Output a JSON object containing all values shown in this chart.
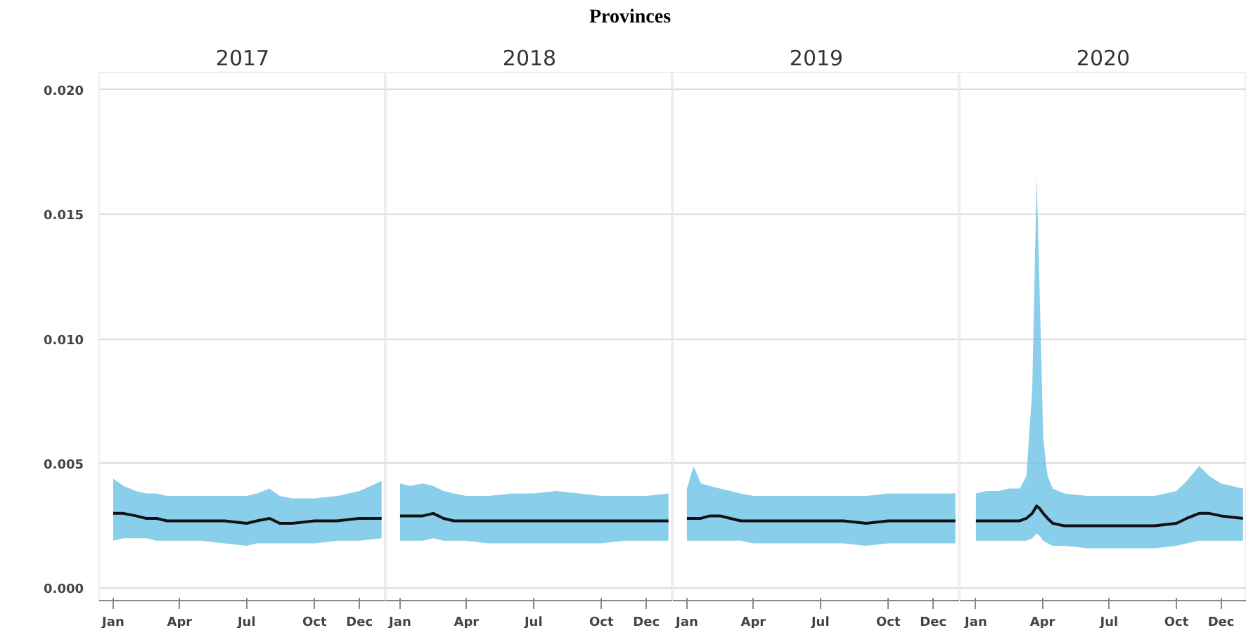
{
  "chart_data": [
    {
      "type": "line",
      "title": "2017",
      "annotations": [
        "Provinces"
      ],
      "x": [
        "2017-01-01",
        "2017-01-15",
        "2017-02-01",
        "2017-02-15",
        "2017-03-01",
        "2017-03-15",
        "2017-04-01",
        "2017-05-01",
        "2017-06-01",
        "2017-07-01",
        "2017-07-15",
        "2017-08-01",
        "2017-08-15",
        "2017-09-01",
        "2017-10-01",
        "2017-11-01",
        "2017-12-01",
        "2017-12-31"
      ],
      "series": [
        {
          "color": "#111111",
          "values": [
            0.003,
            0.003,
            0.0029,
            0.0028,
            0.0028,
            0.0027,
            0.0027,
            0.0027,
            0.0027,
            0.0026,
            0.0027,
            0.0028,
            0.0026,
            0.0026,
            0.0027,
            0.0027,
            0.0028,
            0.0028
          ],
          "lower": [
            0.0019,
            0.002,
            0.002,
            0.002,
            0.0019,
            0.0019,
            0.0019,
            0.0019,
            0.0018,
            0.0017,
            0.0018,
            0.0018,
            0.0018,
            0.0018,
            0.0018,
            0.0019,
            0.0019,
            0.002
          ],
          "upper": [
            0.0044,
            0.0041,
            0.0039,
            0.0038,
            0.0038,
            0.0037,
            0.0037,
            0.0037,
            0.0037,
            0.0037,
            0.0038,
            0.004,
            0.0037,
            0.0036,
            0.0036,
            0.0037,
            0.0039,
            0.0043
          ]
        }
      ],
      "xlim": [
        "2016-12-13",
        "2018-01-06"
      ],
      "xticks": [
        {
          "value": "2017-01-01",
          "label": "Jan"
        },
        {
          "value": "2017-04-01",
          "label": "Apr"
        },
        {
          "value": "2017-07-01",
          "label": "Jul"
        },
        {
          "value": "2017-10-01",
          "label": "Oct"
        },
        {
          "value": "2017-12-01",
          "label": "Dec"
        }
      ],
      "ylim": [
        -0.0005,
        0.0207
      ],
      "yticks": [
        {
          "value": 0,
          "label": "0.000"
        },
        {
          "value": 0.005,
          "label": "0.005"
        },
        {
          "value": 0.01,
          "label": "0.010"
        },
        {
          "value": 0.015,
          "label": "0.015"
        },
        {
          "value": 0.02,
          "label": "0.020"
        }
      ],
      "grid": "y"
    },
    {
      "type": "line",
      "title": "2018",
      "x": [
        "2018-01-01",
        "2018-01-15",
        "2018-02-01",
        "2018-02-15",
        "2018-03-01",
        "2018-03-15",
        "2018-04-01",
        "2018-05-01",
        "2018-06-01",
        "2018-07-01",
        "2018-08-01",
        "2018-09-01",
        "2018-10-01",
        "2018-11-01",
        "2018-12-01",
        "2018-12-31"
      ],
      "series": [
        {
          "color": "#111111",
          "values": [
            0.0029,
            0.0029,
            0.0029,
            0.003,
            0.0028,
            0.0027,
            0.0027,
            0.0027,
            0.0027,
            0.0027,
            0.0027,
            0.0027,
            0.0027,
            0.0027,
            0.0027,
            0.0027
          ],
          "lower": [
            0.0019,
            0.0019,
            0.0019,
            0.002,
            0.0019,
            0.0019,
            0.0019,
            0.0018,
            0.0018,
            0.0018,
            0.0018,
            0.0018,
            0.0018,
            0.0019,
            0.0019,
            0.0019
          ],
          "upper": [
            0.0042,
            0.0041,
            0.0042,
            0.0041,
            0.0039,
            0.0038,
            0.0037,
            0.0037,
            0.0038,
            0.0038,
            0.0039,
            0.0038,
            0.0037,
            0.0037,
            0.0037,
            0.0038
          ]
        }
      ],
      "xlim": [
        "2017-12-13",
        "2019-01-06"
      ],
      "xticks": [
        {
          "value": "2018-01-01",
          "label": "Jan"
        },
        {
          "value": "2018-04-01",
          "label": "Apr"
        },
        {
          "value": "2018-07-01",
          "label": "Jul"
        },
        {
          "value": "2018-10-01",
          "label": "Oct"
        },
        {
          "value": "2018-12-01",
          "label": "Dec"
        }
      ],
      "ylim": [
        -0.0005,
        0.0207
      ],
      "grid": "y",
      "tick_labels": "x"
    },
    {
      "type": "line",
      "title": "2019",
      "x": [
        "2019-01-01",
        "2019-01-10",
        "2019-01-20",
        "2019-02-01",
        "2019-02-15",
        "2019-03-01",
        "2019-03-15",
        "2019-04-01",
        "2019-05-01",
        "2019-06-01",
        "2019-07-01",
        "2019-08-01",
        "2019-09-01",
        "2019-10-01",
        "2019-11-01",
        "2019-12-01",
        "2019-12-31"
      ],
      "series": [
        {
          "color": "#111111",
          "values": [
            0.0028,
            0.0028,
            0.0028,
            0.0029,
            0.0029,
            0.0028,
            0.0027,
            0.0027,
            0.0027,
            0.0027,
            0.0027,
            0.0027,
            0.0026,
            0.0027,
            0.0027,
            0.0027,
            0.0027
          ],
          "lower": [
            0.0019,
            0.0019,
            0.0019,
            0.0019,
            0.0019,
            0.0019,
            0.0019,
            0.0018,
            0.0018,
            0.0018,
            0.0018,
            0.0018,
            0.0017,
            0.0018,
            0.0018,
            0.0018,
            0.0018
          ],
          "upper": [
            0.004,
            0.0049,
            0.0042,
            0.0041,
            0.004,
            0.0039,
            0.0038,
            0.0037,
            0.0037,
            0.0037,
            0.0037,
            0.0037,
            0.0037,
            0.0038,
            0.0038,
            0.0038,
            0.0038
          ]
        }
      ],
      "xlim": [
        "2018-12-13",
        "2020-01-06"
      ],
      "xticks": [
        {
          "value": "2019-01-01",
          "label": "Jan"
        },
        {
          "value": "2019-04-01",
          "label": "Apr"
        },
        {
          "value": "2019-07-01",
          "label": "Jul"
        },
        {
          "value": "2019-10-01",
          "label": "Oct"
        },
        {
          "value": "2019-12-01",
          "label": "Dec"
        }
      ],
      "ylim": [
        -0.0005,
        0.0207
      ],
      "grid": "y",
      "tick_labels": "x"
    },
    {
      "type": "line",
      "title": "2020",
      "x": [
        "2020-01-01",
        "2020-01-15",
        "2020-02-01",
        "2020-02-15",
        "2020-03-01",
        "2020-03-10",
        "2020-03-18",
        "2020-03-24",
        "2020-03-28",
        "2020-04-02",
        "2020-04-08",
        "2020-04-15",
        "2020-05-01",
        "2020-06-01",
        "2020-07-01",
        "2020-08-01",
        "2020-09-01",
        "2020-10-01",
        "2020-10-15",
        "2020-11-01",
        "2020-11-15",
        "2020-12-01",
        "2020-12-31"
      ],
      "series": [
        {
          "color": "#111111",
          "values": [
            0.0027,
            0.0027,
            0.0027,
            0.0027,
            0.0027,
            0.0028,
            0.003,
            0.0033,
            0.0032,
            0.003,
            0.0028,
            0.0026,
            0.0025,
            0.0025,
            0.0025,
            0.0025,
            0.0025,
            0.0026,
            0.0028,
            0.003,
            0.003,
            0.0029,
            0.0028
          ],
          "lower": [
            0.0019,
            0.0019,
            0.0019,
            0.0019,
            0.0019,
            0.0019,
            0.002,
            0.0022,
            0.0021,
            0.0019,
            0.0018,
            0.0017,
            0.0017,
            0.0016,
            0.0016,
            0.0016,
            0.0016,
            0.0017,
            0.0018,
            0.0019,
            0.0019,
            0.0019,
            0.0019
          ],
          "upper": [
            0.0038,
            0.0039,
            0.0039,
            0.004,
            0.004,
            0.0045,
            0.008,
            0.0165,
            0.012,
            0.006,
            0.0045,
            0.004,
            0.0038,
            0.0037,
            0.0037,
            0.0037,
            0.0037,
            0.0039,
            0.0043,
            0.0049,
            0.0045,
            0.0042,
            0.004
          ]
        }
      ],
      "xlim": [
        "2019-12-10",
        "2021-01-05"
      ],
      "xticks": [
        {
          "value": "2020-01-01",
          "label": "Jan"
        },
        {
          "value": "2020-04-01",
          "label": "Apr"
        },
        {
          "value": "2020-07-01",
          "label": "Jul"
        },
        {
          "value": "2020-10-01",
          "label": "Oct"
        },
        {
          "value": "2020-12-01",
          "label": "Dec"
        }
      ],
      "ylim": [
        -0.0005,
        0.0207
      ],
      "grid": "y",
      "tick_labels": "x"
    }
  ]
}
